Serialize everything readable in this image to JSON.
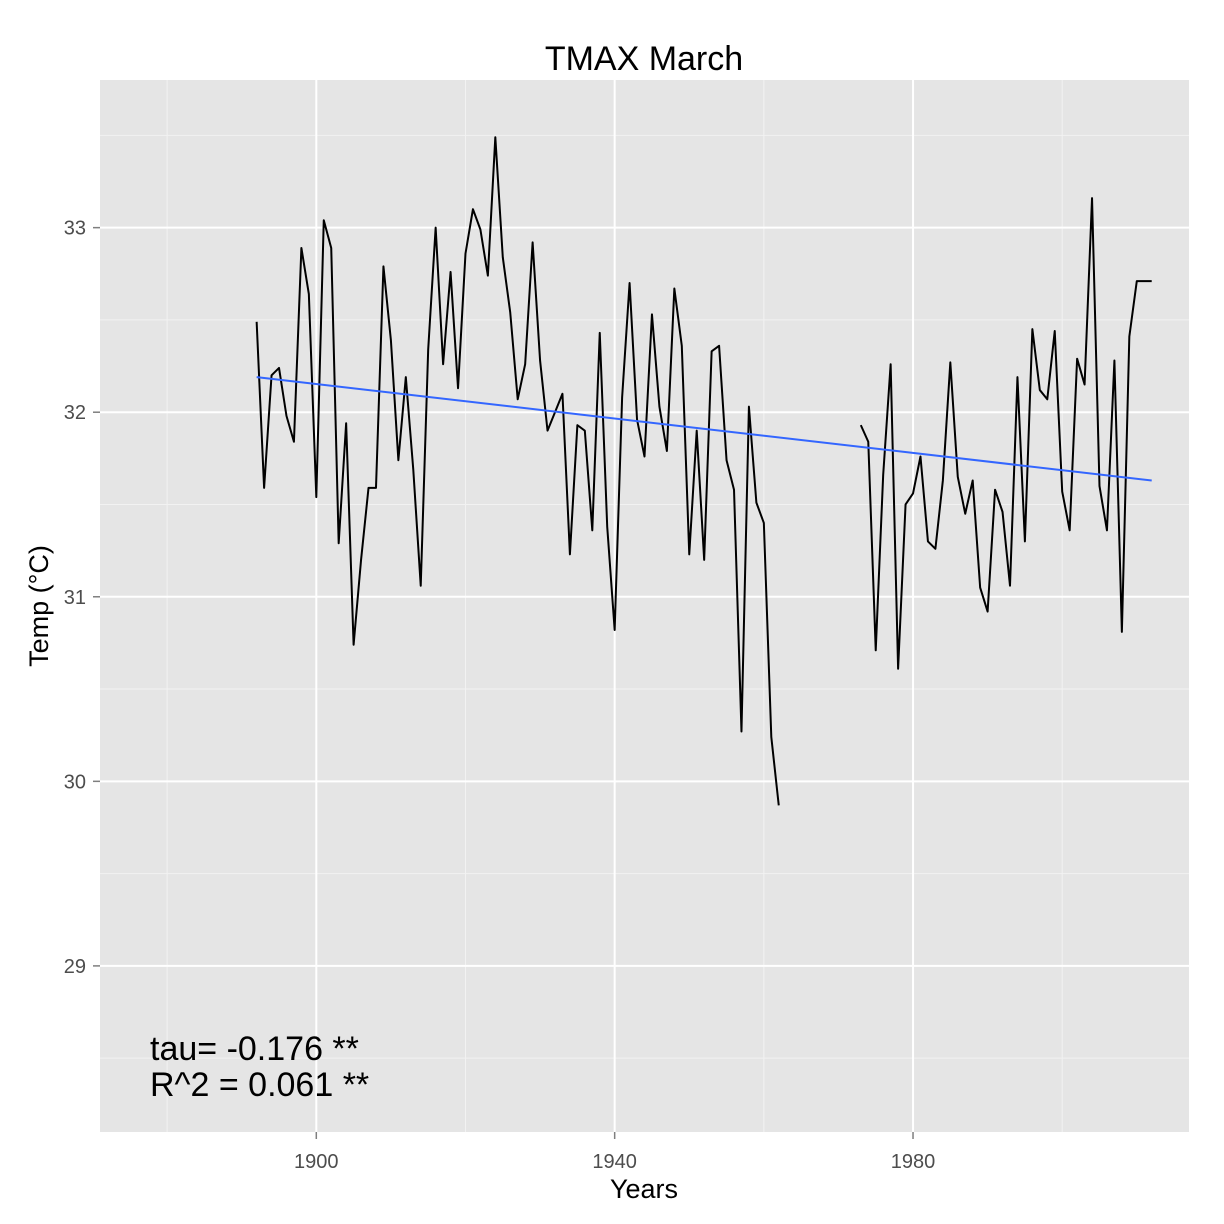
{
  "chart_data": {
    "type": "line",
    "title": "TMAX March",
    "xlabel": "Years",
    "ylabel": "Temp (°C)",
    "xlim": [
      1871,
      2017
    ],
    "ylim": [
      28.1,
      33.8
    ],
    "x_ticks": [
      1900,
      1940,
      1980
    ],
    "x_tick_labels": [
      "1900",
      "1940",
      "1980"
    ],
    "y_ticks": [
      29,
      30,
      31,
      32,
      33
    ],
    "y_tick_labels": [
      "29",
      "30",
      "31",
      "32",
      "33"
    ],
    "grid": true,
    "background": "#e5e5e5",
    "series": [
      {
        "color": "#000000",
        "segments": [
          {
            "x": [
              1892,
              1893,
              1894,
              1895,
              1896,
              1897,
              1898,
              1899,
              1900,
              1901,
              1902,
              1903,
              1904,
              1905,
              1906,
              1907,
              1908,
              1909,
              1910,
              1911,
              1912,
              1913,
              1914,
              1915,
              1916,
              1917,
              1918,
              1919,
              1920,
              1921,
              1922,
              1923,
              1924,
              1925,
              1926,
              1927,
              1928,
              1929,
              1930,
              1931,
              1932,
              1933,
              1934,
              1935,
              1936,
              1937,
              1938,
              1939,
              1940,
              1941,
              1942,
              1943,
              1944,
              1945,
              1946,
              1947,
              1948,
              1949,
              1950,
              1951,
              1952,
              1953,
              1954,
              1955,
              1956,
              1957,
              1958,
              1959,
              1960,
              1961,
              1962
            ],
            "y": [
              32.49,
              31.59,
              32.2,
              32.24,
              31.98,
              31.84,
              32.89,
              32.64,
              31.54,
              33.04,
              32.89,
              31.29,
              31.94,
              30.74,
              31.2,
              31.59,
              31.59,
              32.79,
              32.39,
              31.74,
              32.19,
              31.69,
              31.06,
              32.34,
              33.0,
              32.26,
              32.76,
              32.13,
              32.86,
              33.1,
              32.99,
              32.74,
              33.49,
              32.84,
              32.54,
              32.07,
              32.26,
              32.92,
              32.28,
              31.9,
              32.0,
              32.1,
              31.23,
              31.93,
              31.9,
              31.36,
              32.43,
              31.38,
              30.82,
              32.08,
              32.7,
              31.96,
              31.76,
              32.53,
              32.03,
              31.79,
              32.67,
              32.36,
              31.23,
              31.9,
              31.2,
              32.33,
              32.36,
              31.74,
              31.58,
              30.27,
              32.03,
              31.51,
              31.4,
              30.24,
              29.87
            ]
          },
          {
            "x": [
              1973,
              1974,
              1975,
              1976,
              1977,
              1978,
              1979,
              1980,
              1981,
              1982,
              1983,
              1984,
              1985,
              1986,
              1987,
              1988,
              1989,
              1990,
              1991,
              1992,
              1993,
              1994,
              1995,
              1996,
              1997,
              1998,
              1999,
              2000,
              2001,
              2002,
              2003,
              2004,
              2005,
              2006,
              2007,
              2008,
              2009,
              2010,
              2011,
              2012
            ],
            "y": [
              31.93,
              31.84,
              30.71,
              31.66,
              32.26,
              30.61,
              31.5,
              31.56,
              31.76,
              31.3,
              31.26,
              31.63,
              32.27,
              31.65,
              31.45,
              31.63,
              31.05,
              30.92,
              31.58,
              31.46,
              31.06,
              32.19,
              31.3,
              32.45,
              32.12,
              32.07,
              32.44,
              31.57,
              31.36,
              32.29,
              32.15,
              33.16,
              31.6,
              31.36,
              32.28,
              30.81,
              32.41,
              32.71,
              32.71,
              32.71
            ]
          }
        ]
      },
      {
        "color": "#3366ff",
        "x": [
          1892,
          2012
        ],
        "y": [
          32.19,
          31.63
        ]
      }
    ],
    "annotations": [
      "tau= -0.176 **",
      "R^2 =  0.061 **"
    ]
  }
}
